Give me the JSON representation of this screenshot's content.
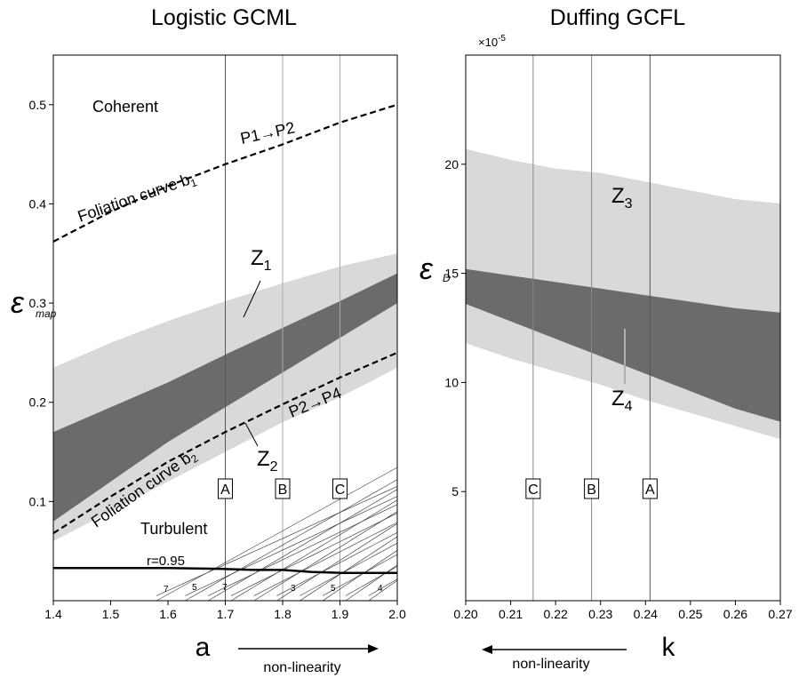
{
  "chart_data": [
    {
      "type": "area",
      "title": "Logistic GCML",
      "xlabel": "a",
      "ylabel": "ε",
      "ylabel_sub": "map",
      "xlim": [
        1.4,
        2.0
      ],
      "ylim": [
        0.0,
        0.55
      ],
      "x_ticks": [
        "1.4",
        "1.5",
        "1.6",
        "1.7",
        "1.8",
        "1.9",
        "2.0"
      ],
      "y_ticks": [
        "0.1",
        "0.2",
        "0.3",
        "0.4",
        "0.5"
      ],
      "arrow_label": "non-linearity",
      "arrow_direction": "right",
      "vertical_lines": [
        {
          "label": "A",
          "x": 1.7
        },
        {
          "label": "B",
          "x": 1.8
        },
        {
          "label": "C",
          "x": 1.9
        }
      ],
      "light_band": {
        "x": [
          1.4,
          1.5,
          1.6,
          1.7,
          1.8,
          1.9,
          2.0
        ],
        "upper": [
          0.235,
          0.26,
          0.282,
          0.302,
          0.32,
          0.337,
          0.35
        ],
        "lower": [
          0.06,
          0.09,
          0.12,
          0.15,
          0.18,
          0.205,
          0.235
        ]
      },
      "dark_band": {
        "x": [
          1.4,
          1.5,
          1.6,
          1.7,
          1.8,
          1.9,
          2.0
        ],
        "upper": [
          0.17,
          0.195,
          0.22,
          0.248,
          0.275,
          0.302,
          0.33
        ],
        "lower": [
          0.08,
          0.12,
          0.16,
          0.195,
          0.23,
          0.265,
          0.3
        ]
      },
      "foliation_b1": {
        "x": [
          1.4,
          1.5,
          1.6,
          1.7,
          1.8,
          1.9,
          2.0
        ],
        "y": [
          0.362,
          0.392,
          0.418,
          0.44,
          0.46,
          0.482,
          0.5
        ]
      },
      "foliation_b2": {
        "x": [
          1.4,
          1.5,
          1.6,
          1.7,
          1.8,
          1.9,
          2.0
        ],
        "y": [
          0.068,
          0.105,
          0.14,
          0.17,
          0.198,
          0.225,
          0.25
        ]
      },
      "r_curve": {
        "x": [
          1.4,
          1.6,
          1.7,
          1.75,
          1.8,
          1.85,
          1.9,
          2.0
        ],
        "y": [
          0.033,
          0.033,
          0.032,
          0.031,
          0.031,
          0.029,
          0.028,
          0.028
        ]
      },
      "annotations": {
        "coherent": "Coherent",
        "turbulent": "Turbulent",
        "b1_prefix": "Foliation curve b",
        "b1_sub": "1",
        "b2_prefix": "Foliation curve b",
        "b2_sub": "2",
        "p1p2": "P1→P2",
        "p2p4": "P2→P4",
        "z1": "Z",
        "z1_sub": "1",
        "z2": "Z",
        "z2_sub": "2",
        "r_label": "r=0.95",
        "period_labels": [
          "7",
          "5",
          "7",
          "3",
          "5",
          "4"
        ]
      }
    },
    {
      "type": "area",
      "title": "Duffing GCFL",
      "xlabel": "k",
      "ylabel": "ε",
      "ylabel_sub": "D",
      "y_scale_label": "×10",
      "y_scale_exp": "-5",
      "xlim": [
        0.2,
        0.27
      ],
      "ylim": [
        0,
        25
      ],
      "x_ticks": [
        "0.20",
        "0.21",
        "0.22",
        "0.23",
        "0.24",
        "0.25",
        "0.26",
        "0.27"
      ],
      "y_ticks": [
        "5",
        "10",
        "15",
        "20"
      ],
      "arrow_label": "non-linearity",
      "arrow_direction": "left",
      "vertical_lines": [
        {
          "label": "C",
          "x": 0.215
        },
        {
          "label": "B",
          "x": 0.228
        },
        {
          "label": "A",
          "x": 0.241
        }
      ],
      "light_band": {
        "x": [
          0.2,
          0.21,
          0.22,
          0.23,
          0.24,
          0.25,
          0.26,
          0.27
        ],
        "upper": [
          20.7,
          20.2,
          19.8,
          19.6,
          19.2,
          18.8,
          18.4,
          18.2
        ],
        "lower": [
          11.8,
          11.1,
          10.5,
          9.9,
          9.2,
          8.6,
          8.0,
          7.4
        ]
      },
      "dark_band": {
        "x": [
          0.2,
          0.21,
          0.22,
          0.23,
          0.24,
          0.25,
          0.26,
          0.27
        ],
        "upper": [
          15.2,
          14.9,
          14.6,
          14.3,
          14.0,
          13.7,
          13.4,
          13.2
        ],
        "lower": [
          13.6,
          12.8,
          12.0,
          11.2,
          10.4,
          9.6,
          8.8,
          8.2
        ]
      },
      "annotations": {
        "z3": "Z",
        "z3_sub": "3",
        "z4": "Z",
        "z4_sub": "4"
      }
    }
  ]
}
